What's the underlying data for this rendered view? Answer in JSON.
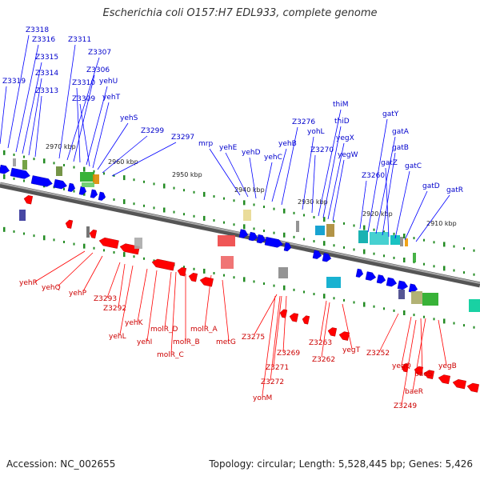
{
  "title": "Escherichia coli O157:H7 EDL933, complete genome",
  "accession": "Accession: NC_002655",
  "summary": "Topology: circular; Length: 5,528,445 bp; Genes: 5,426",
  "colors": {
    "forward": "#0000ff",
    "reverse": "#ff0000",
    "label_forward": "#0000cc",
    "label_reverse": "#cc0000",
    "axis": "#888888",
    "tick": "#228b22"
  },
  "scale_labels": [
    "2970 kbp",
    "2960 kbp",
    "2950 kbp",
    "2940 kbp",
    "2930 kbp",
    "2920 kbp",
    "2910 kbp"
  ],
  "forward_genes": [
    "Z3318",
    "Z3316",
    "Z3315",
    "Z3311",
    "Z3314",
    "Z3307",
    "Z3319",
    "Z3313",
    "Z3306",
    "Z3310",
    "yehU",
    "Z3309",
    "yehT",
    "yehS",
    "Z3299",
    "Z3297",
    "mrp",
    "yehE",
    "yehD",
    "yehC",
    "yehB",
    "Z3276",
    "yohL",
    "Z3270",
    "thiM",
    "thiD",
    "yegX",
    "yegW",
    "Z3260",
    "gatY",
    "gatA",
    "gatB",
    "gatZ",
    "gatC",
    "gatD",
    "gatR"
  ],
  "reverse_genes": [
    "yehR",
    "yehQ",
    "yehP",
    "Z3293",
    "Z3292",
    "yehL",
    "yehK",
    "yehI",
    "molR_D",
    "molR_B",
    "molR_C",
    "molR_A",
    "metG",
    "Z3275",
    "Z3269",
    "Z3271",
    "Z3272",
    "yohM",
    "Z3263",
    "Z3262",
    "yegT",
    "Z3252",
    "yegQ",
    "baeS",
    "baeR",
    "Z3249",
    "yegB"
  ]
}
